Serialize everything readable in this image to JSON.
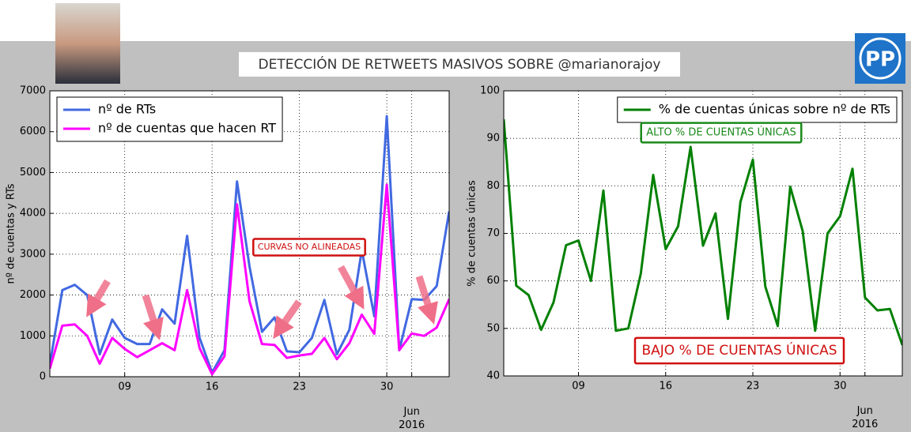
{
  "header": {
    "title": "DETECCIÓN DE RETWEETS MASIVOS SOBRE @marianorajoy",
    "logo": "PP"
  },
  "chart_data": [
    {
      "type": "line",
      "ylabel": "nº de cuentas y RTs",
      "x": [
        "2016-05-03",
        "2016-05-04",
        "2016-05-05",
        "2016-05-06",
        "2016-05-07",
        "2016-05-08",
        "2016-05-09",
        "2016-05-10",
        "2016-05-11",
        "2016-05-12",
        "2016-05-13",
        "2016-05-14",
        "2016-05-15",
        "2016-05-16",
        "2016-05-17",
        "2016-05-18",
        "2016-05-19",
        "2016-05-20",
        "2016-05-21",
        "2016-05-22",
        "2016-05-23",
        "2016-05-24",
        "2016-05-25",
        "2016-05-26",
        "2016-05-27",
        "2016-05-28",
        "2016-05-29",
        "2016-05-30",
        "2016-05-31",
        "2016-06-01",
        "2016-06-02",
        "2016-06-03",
        "2016-06-04"
      ],
      "series": [
        {
          "name": "nº de RTs",
          "color": "#4169e1",
          "values": [
            300,
            2120,
            2250,
            2000,
            550,
            1400,
            950,
            800,
            800,
            1650,
            1300,
            3450,
            950,
            100,
            650,
            4780,
            2700,
            1100,
            1450,
            620,
            600,
            950,
            1880,
            550,
            1150,
            3100,
            1480,
            6380,
            650,
            1900,
            1880,
            2220,
            4050
          ]
        },
        {
          "name": "nº de cuentas que hacen RT",
          "color": "#ff00ff",
          "values": [
            200,
            1250,
            1280,
            1000,
            320,
            950,
            680,
            480,
            650,
            820,
            650,
            2120,
            700,
            60,
            500,
            4220,
            1850,
            800,
            780,
            460,
            520,
            560,
            950,
            430,
            820,
            1520,
            1050,
            4700,
            650,
            1060,
            1000,
            1200,
            1900
          ]
        }
      ],
      "xlim": [
        "2016-05-03",
        "2016-06-04"
      ],
      "xticks": [
        {
          "value": "2016-05-09",
          "label": "09"
        },
        {
          "value": "2016-05-16",
          "label": "16"
        },
        {
          "value": "2016-05-23",
          "label": "23"
        },
        {
          "value": "2016-05-30",
          "label": "30"
        },
        {
          "value": "2016-06-01",
          "label": "Jun\n2016"
        }
      ],
      "ylim": [
        0,
        7000
      ],
      "yticks": [
        0,
        1000,
        2000,
        3000,
        4000,
        5000,
        6000,
        7000
      ],
      "grid": true,
      "legend": "upper left",
      "annotations": [
        {
          "text": "CURVAS NO ALINEADAS",
          "color": "#d01010"
        }
      ]
    },
    {
      "type": "line",
      "ylabel": "% de cuentas únicas",
      "x": [
        "2016-05-03",
        "2016-05-04",
        "2016-05-05",
        "2016-05-06",
        "2016-05-07",
        "2016-05-08",
        "2016-05-09",
        "2016-05-10",
        "2016-05-11",
        "2016-05-12",
        "2016-05-13",
        "2016-05-14",
        "2016-05-15",
        "2016-05-16",
        "2016-05-17",
        "2016-05-18",
        "2016-05-19",
        "2016-05-20",
        "2016-05-21",
        "2016-05-22",
        "2016-05-23",
        "2016-05-24",
        "2016-05-25",
        "2016-05-26",
        "2016-05-27",
        "2016-05-28",
        "2016-05-29",
        "2016-05-30",
        "2016-05-31",
        "2016-06-01",
        "2016-06-02",
        "2016-06-03",
        "2016-06-04"
      ],
      "series": [
        {
          "name": "% de cuentas únicas sobre nº de RTs",
          "color": "#008000",
          "values": [
            94,
            59,
            57,
            49.7,
            55.5,
            67.5,
            68.5,
            60,
            79,
            49.5,
            50,
            61.5,
            82.3,
            66.7,
            71.5,
            88.2,
            67.4,
            74.2,
            52,
            76.6,
            85.5,
            58.8,
            50.5,
            79.8,
            70.5,
            49.5,
            70,
            73.6,
            83.6,
            56.5,
            53.8,
            54.1,
            46.5
          ]
        }
      ],
      "xlim": [
        "2016-05-03",
        "2016-06-04"
      ],
      "xticks": [
        {
          "value": "2016-05-09",
          "label": "09"
        },
        {
          "value": "2016-05-16",
          "label": "16"
        },
        {
          "value": "2016-05-23",
          "label": "23"
        },
        {
          "value": "2016-05-30",
          "label": "30"
        },
        {
          "value": "2016-06-01",
          "label": "Jun\n2016"
        }
      ],
      "ylim": [
        40,
        100
      ],
      "yticks": [
        40,
        50,
        60,
        70,
        80,
        90,
        100
      ],
      "grid": true,
      "legend": "upper right",
      "annotations": [
        {
          "text": "ALTO % DE CUENTAS ÚNICAS",
          "color": "#1a8a1a"
        },
        {
          "text": "BAJO % DE CUENTAS ÚNICAS",
          "color": "#d01010"
        }
      ]
    }
  ]
}
